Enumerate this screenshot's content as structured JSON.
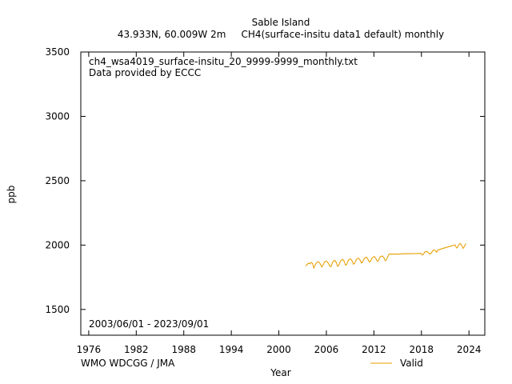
{
  "header": {
    "title": "Sable Island",
    "subtitle": "43.933N, 60.009W 2m     CH4(surface-insitu data1 default) monthly"
  },
  "annotations": {
    "filename": "ch4_wsa4019_surface-insitu_20_9999-9999_monthly.txt",
    "provider": "Data provided by ECCC",
    "date_range": "2003/06/01 - 2023/09/01",
    "watermark": "WMO WDCGG / JMA"
  },
  "colors": {
    "series": "#e69f00",
    "watermark": "#a0a0a0",
    "axis": "#000000"
  },
  "chart_data": {
    "type": "line",
    "xlabel": "Year",
    "ylabel": "ppb",
    "xlim": [
      1975,
      2026
    ],
    "ylim": [
      1300,
      3500
    ],
    "xticks": [
      1976,
      1982,
      1988,
      1994,
      2000,
      2006,
      2012,
      2018,
      2024
    ],
    "yticks": [
      1500,
      2000,
      2500,
      3000,
      3500
    ],
    "grid": false,
    "legend_position": "bottom-right",
    "series": [
      {
        "name": "Valid",
        "color": "#e69f00",
        "x": [
          2003.42,
          2003.58,
          2003.75,
          2003.92,
          2004.08,
          2004.25,
          2004.42,
          2004.58,
          2004.75,
          2004.92,
          2005.08,
          2005.25,
          2005.42,
          2005.58,
          2005.75,
          2005.92,
          2006.08,
          2006.25,
          2006.42,
          2006.58,
          2006.75,
          2006.92,
          2007.08,
          2007.25,
          2007.42,
          2007.58,
          2007.75,
          2007.92,
          2008.08,
          2008.25,
          2008.42,
          2008.58,
          2008.75,
          2008.92,
          2009.08,
          2009.25,
          2009.42,
          2009.58,
          2009.75,
          2009.92,
          2010.08,
          2010.25,
          2010.42,
          2010.58,
          2010.75,
          2010.92,
          2011.08,
          2011.25,
          2011.42,
          2011.58,
          2011.75,
          2011.92,
          2012.08,
          2012.25,
          2012.42,
          2012.58,
          2012.75,
          2012.92,
          2013.08,
          2013.25,
          2013.42,
          2013.58,
          2013.75,
          2013.92,
          2014.08,
          2014.25,
          2014.42,
          2014.58,
          2014.75,
          2014.92,
          2015.08,
          2015.25,
          2015.42,
          2015.58,
          2015.75,
          2015.92,
          2016.08,
          2016.25,
          2016.42,
          2016.58,
          2016.75,
          2016.92,
          2017.08,
          2017.25,
          2017.42,
          2017.58,
          2017.75,
          2017.92,
          2018.08,
          2018.25,
          2018.42,
          2018.58,
          2018.75,
          2018.92,
          2019.08,
          2019.25,
          2019.42,
          2019.58,
          2019.75,
          2019.92,
          2020.08,
          2020.25,
          2020.42,
          2020.58,
          2020.75,
          2020.92,
          2021.08,
          2021.25,
          2021.42,
          2021.58,
          2021.75,
          2021.92,
          2022.08,
          2022.25,
          2022.42,
          2022.58,
          2022.75,
          2022.92,
          2023.08,
          2023.25,
          2023.42,
          2023.58
        ],
        "y": [
          1840,
          1850,
          1860,
          1855,
          1865,
          1858,
          1822,
          1845,
          1862,
          1870,
          1866,
          1852,
          1830,
          1845,
          1868,
          1875,
          1872,
          1860,
          1838,
          1832,
          1860,
          1878,
          1880,
          1865,
          1835,
          1845,
          1872,
          1885,
          1888,
          1874,
          1845,
          1852,
          1880,
          1890,
          1892,
          1878,
          1852,
          1860,
          1885,
          1895,
          1898,
          1884,
          1862,
          1870,
          1892,
          1902,
          1905,
          1890,
          1870,
          1875,
          1898,
          1908,
          1910,
          1896,
          1875,
          1880,
          1905,
          1912,
          1915,
          1902,
          1880,
          1885,
          1910,
          1930,
          1930,
          1930,
          1930,
          1930,
          1930,
          1930,
          1930,
          1930,
          1932,
          1932,
          1932,
          1933,
          1933,
          1933,
          1933,
          1933,
          1934,
          1934,
          1934,
          1934,
          1934,
          1935,
          1935,
          1935,
          1924,
          1930,
          1945,
          1950,
          1948,
          1938,
          1930,
          1940,
          1955,
          1962,
          1958,
          1945,
          1960,
          1965,
          1968,
          1972,
          1975,
          1978,
          1980,
          1984,
          1987,
          1990,
          1993,
          1996,
          1998,
          2001,
          1978,
          1985,
          2005,
          2012,
          1998,
          1975,
          1990,
          2010
        ]
      }
    ]
  }
}
